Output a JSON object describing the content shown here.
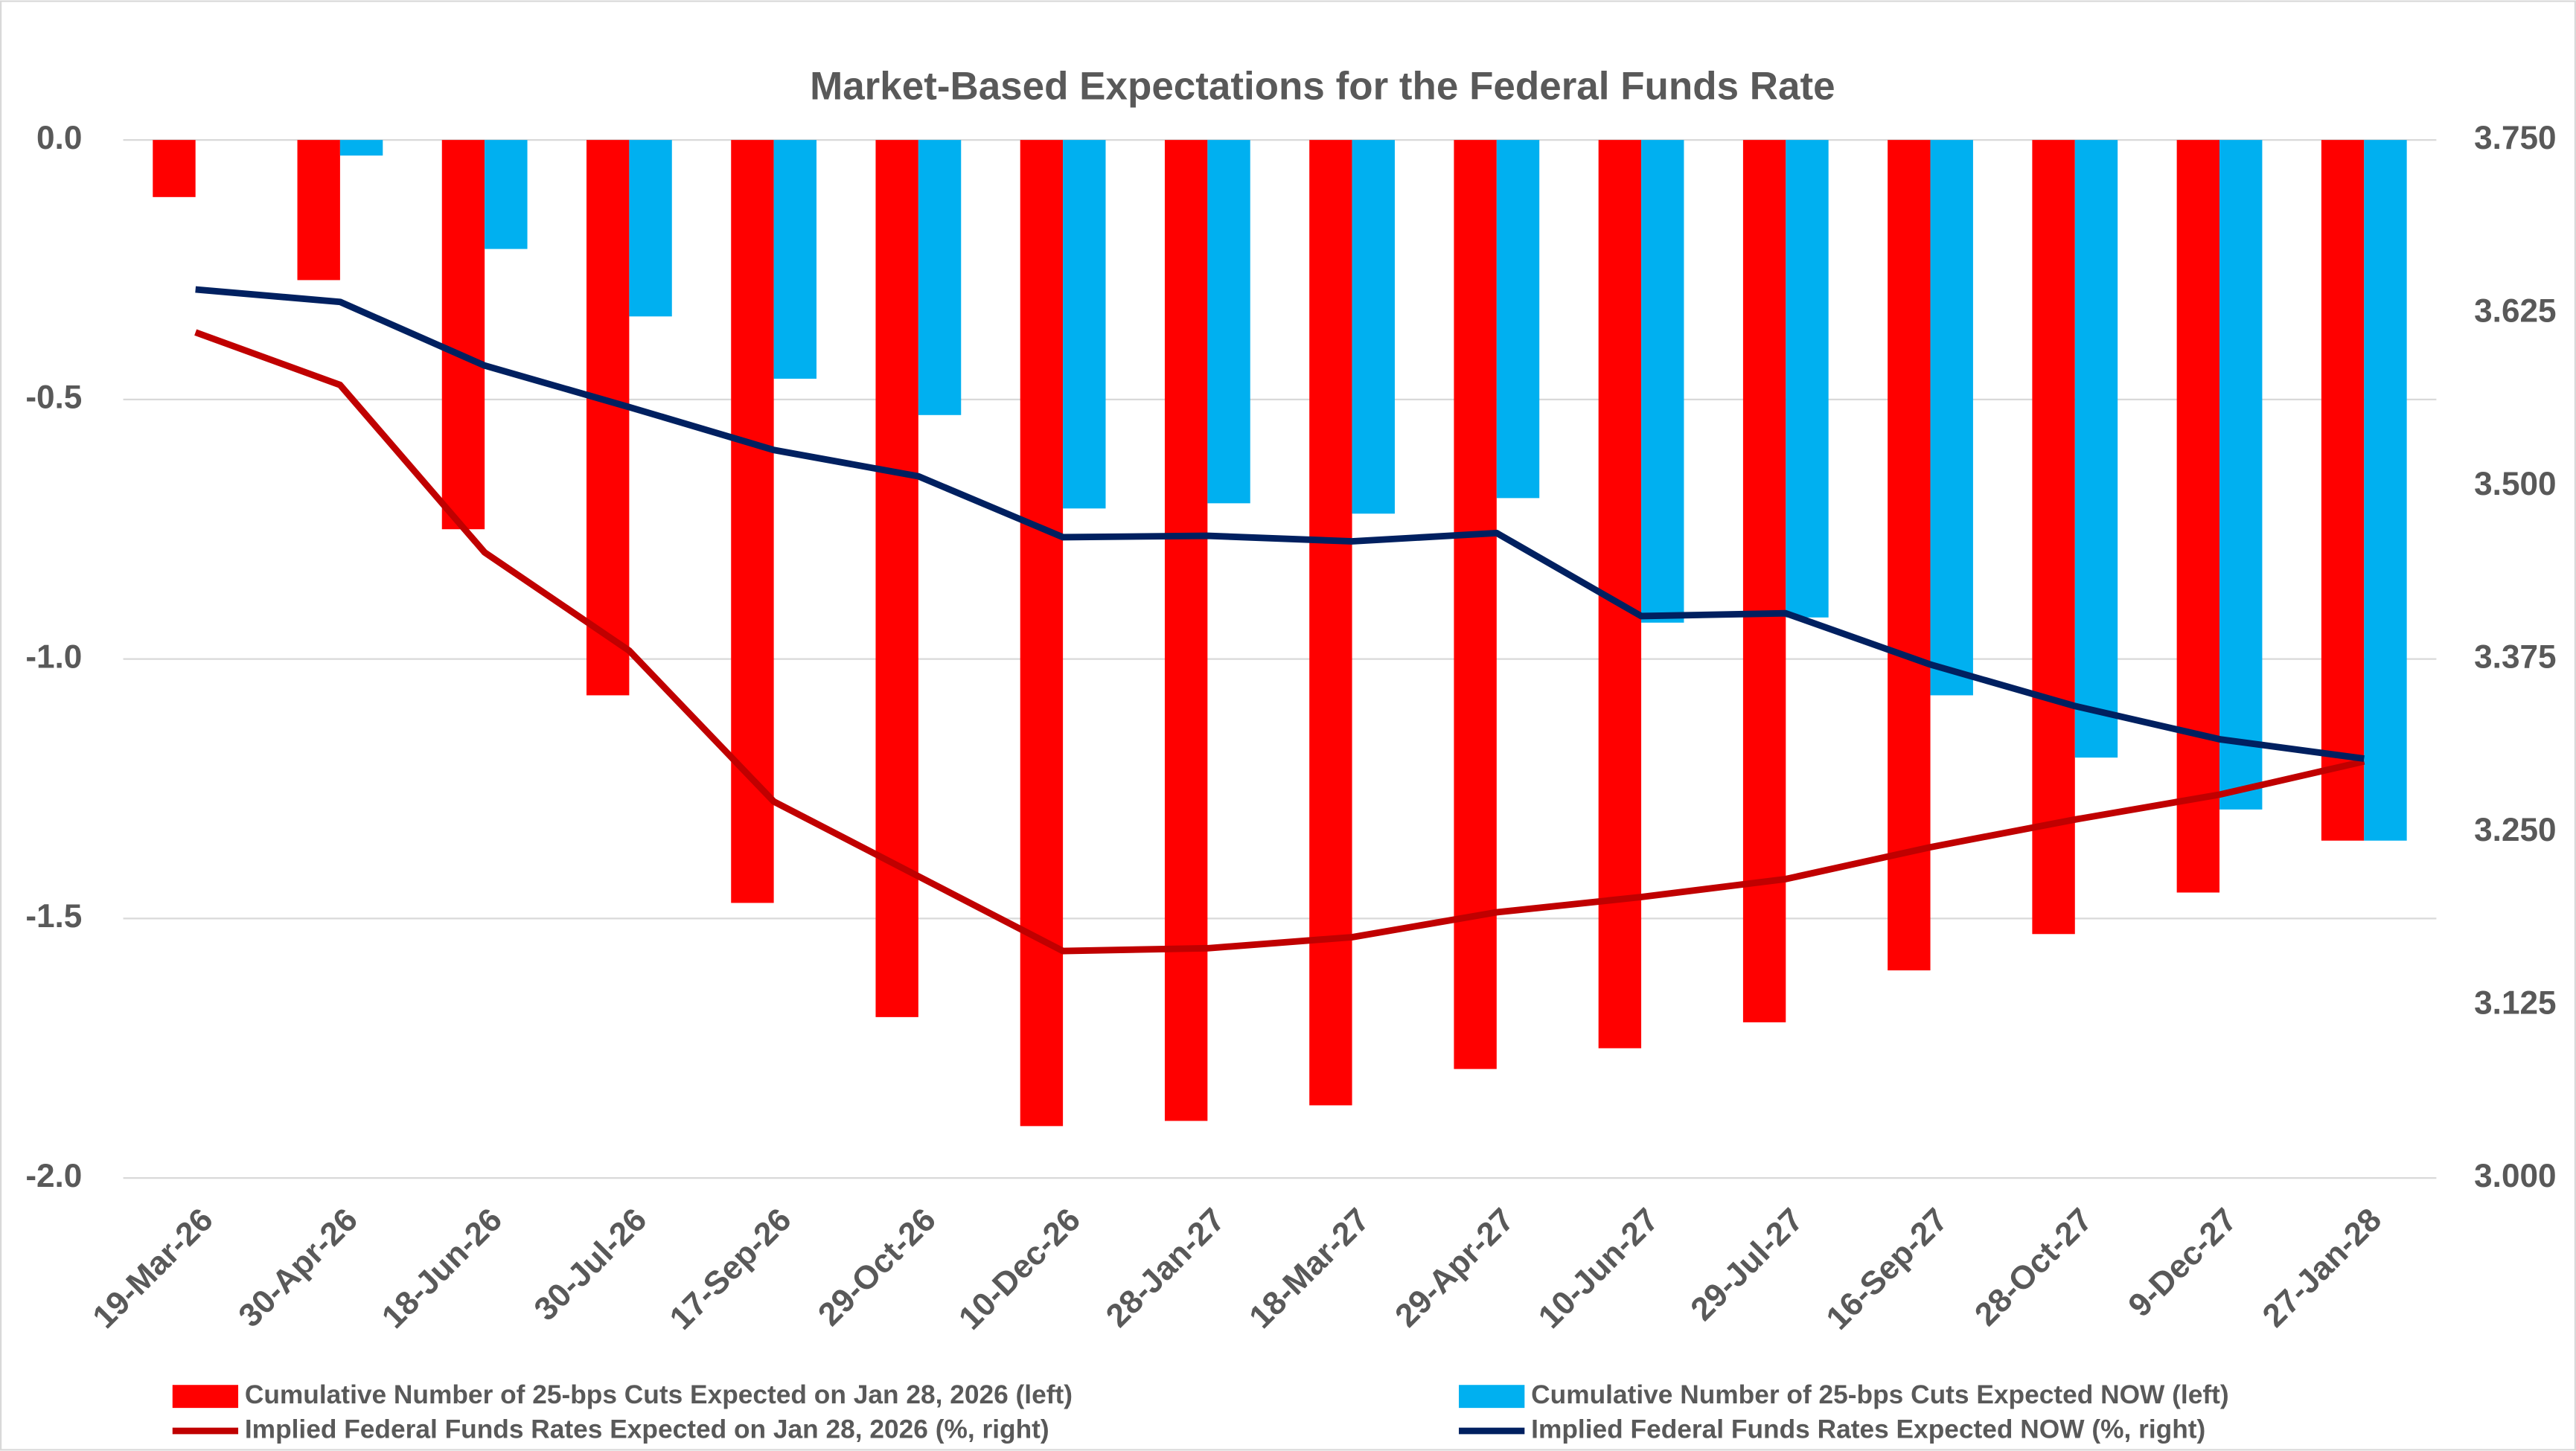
{
  "chart_data": {
    "type": "bar",
    "title": "Market-Based Expectations for the Federal Funds Rate",
    "categories": [
      "19-Mar-26",
      "30-Apr-26",
      "18-Jun-26",
      "30-Jul-26",
      "17-Sep-26",
      "29-Oct-26",
      "10-Dec-26",
      "28-Jan-27",
      "18-Mar-27",
      "29-Apr-27",
      "10-Jun-27",
      "29-Jul-27",
      "16-Sep-27",
      "28-Oct-27",
      "9-Dec-27",
      "27-Jan-28"
    ],
    "ylim": [
      -2.0,
      0.0
    ],
    "yticks": [
      {
        "value": 0,
        "label": "0.0"
      },
      -0.5,
      {
        "value": -1,
        "label": "-1.0"
      },
      -1.5,
      {
        "value": -2,
        "label": "-2.0"
      }
    ],
    "y2lim": [
      3.0,
      3.75
    ],
    "y2ticks": [
      {
        "value": 3.75,
        "label": "3.750"
      },
      3.625,
      {
        "value": 3.5,
        "label": "3.500"
      },
      3.375,
      {
        "value": 3.25,
        "label": "3.250"
      },
      3.125,
      {
        "value": 3,
        "label": "3.000"
      }
    ],
    "grid": true,
    "series": [
      {
        "name": "Cumulative Number of 25-bps Cuts Expected on Jan 28, 2026 (left)",
        "type": "bar",
        "color": "#ff0000",
        "values": [
          -0.11,
          -0.27,
          -0.75,
          -1.07,
          -1.47,
          -1.69,
          -1.9,
          -1.89,
          -1.86,
          -1.79,
          -1.75,
          -1.7,
          -1.6,
          -1.53,
          -1.45,
          -1.35
        ]
      },
      {
        "name": "Cumulative Number of 25-bps Cuts Expected NOW (left)",
        "type": "bar",
        "color": "#00b0f0",
        "values": [
          0,
          -0.03,
          -0.21,
          -0.34,
          -0.46,
          -0.53,
          -0.71,
          -0.7,
          -0.72,
          -0.69,
          -0.93,
          -0.92,
          -1.07,
          -1.19,
          -1.29,
          -1.35
        ]
      },
      {
        "name": "Implied Federal Funds Rates Expected on Jan 28, 2026 (%, right)",
        "type": "line",
        "axis": "y2",
        "color": "#c00000",
        "values": [
          3.611,
          3.573,
          3.452,
          3.381,
          3.272,
          3.218,
          3.164,
          3.166,
          3.174,
          3.192,
          3.203,
          3.216,
          3.239,
          3.259,
          3.277,
          3.301
        ]
      },
      {
        "name": "Implied Federal Funds Rates Expected NOW (%, right)",
        "type": "line",
        "axis": "y2",
        "color": "#002060",
        "values": [
          3.642,
          3.633,
          3.587,
          3.557,
          3.526,
          3.507,
          3.463,
          3.464,
          3.46,
          3.466,
          3.406,
          3.408,
          3.371,
          3.341,
          3.317,
          3.303
        ]
      }
    ]
  }
}
